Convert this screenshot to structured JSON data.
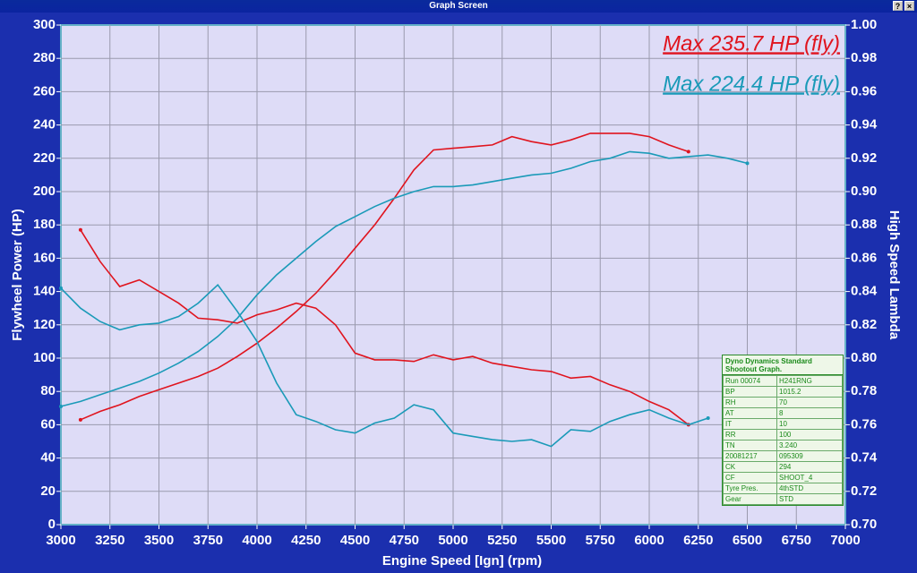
{
  "window": {
    "title": "Graph Screen"
  },
  "chart_data": {
    "type": "line",
    "xlabel": "Engine Speed [Ign] (rpm)",
    "ylabel": "Flywheel Power (HP)",
    "y2label": "High Speed Lambda",
    "annotations": [
      {
        "text": "Max 235.7 HP (fly)",
        "color": "#e0141e"
      },
      {
        "text": "Max 224.4 HP (fly)",
        "color": "#1a9ab8"
      }
    ],
    "grid": true,
    "xlim": [
      3000,
      7000
    ],
    "xticks": [
      3000,
      3250,
      3500,
      3750,
      4000,
      4250,
      4500,
      4750,
      5000,
      5250,
      5500,
      5750,
      6000,
      6250,
      6500,
      6750,
      7000
    ],
    "ylim": [
      0,
      300
    ],
    "yticks": [
      0,
      20,
      40,
      60,
      80,
      100,
      120,
      140,
      160,
      180,
      200,
      220,
      240,
      260,
      280,
      300
    ],
    "y2lim": [
      0.7,
      1.0
    ],
    "y2ticks": [
      {
        "value": 0.7,
        "label": "0.70"
      },
      0.72,
      0.74,
      0.76,
      0.78,
      {
        "value": 0.8,
        "label": "0.80"
      },
      0.82,
      0.84,
      0.86,
      0.88,
      {
        "value": 0.9,
        "label": "0.90"
      },
      0.92,
      0.94,
      0.96,
      0.98,
      {
        "value": 1.0,
        "label": "1.00"
      }
    ],
    "x": [
      3000,
      3100,
      3200,
      3300,
      3400,
      3500,
      3600,
      3700,
      3800,
      3900,
      4000,
      4100,
      4200,
      4300,
      4400,
      4500,
      4600,
      4700,
      4800,
      4900,
      5000,
      5100,
      5200,
      5300,
      5400,
      5500,
      5600,
      5700,
      5800,
      5900,
      6000,
      6100,
      6200,
      6300,
      6400,
      6500
    ],
    "series": [
      {
        "color": "#e0141e",
        "values": [
          null,
          63,
          68,
          72,
          77,
          81,
          85,
          89,
          94,
          101,
          109,
          118,
          128,
          139,
          152,
          166,
          180,
          196,
          213,
          225,
          226,
          227,
          228,
          233,
          230,
          228,
          231,
          235,
          235,
          235,
          233,
          228,
          224,
          null,
          null,
          null
        ]
      },
      {
        "color": "#1a9ab8",
        "values": [
          71,
          74,
          78,
          82,
          86,
          91,
          97,
          104,
          113,
          124,
          138,
          150,
          160,
          170,
          179,
          185,
          191,
          196,
          200,
          203,
          203,
          204,
          206,
          208,
          210,
          211,
          214,
          218,
          220,
          224,
          223,
          220,
          221,
          222,
          220,
          217
        ]
      },
      {
        "color": "#e0141e",
        "axis": "y2",
        "values": [
          null,
          0.877,
          0.858,
          0.843,
          0.847,
          0.84,
          0.833,
          0.824,
          0.823,
          0.821,
          0.826,
          0.829,
          0.833,
          0.83,
          0.82,
          0.803,
          0.799,
          0.799,
          0.798,
          0.802,
          0.799,
          0.801,
          0.797,
          0.795,
          0.793,
          0.792,
          0.788,
          0.789,
          0.784,
          0.78,
          0.774,
          0.769,
          0.76,
          null,
          null,
          null
        ]
      },
      {
        "color": "#1a9ab8",
        "axis": "y2",
        "values": [
          0.842,
          0.83,
          0.822,
          0.817,
          0.82,
          0.821,
          0.825,
          0.833,
          0.844,
          0.828,
          0.81,
          0.785,
          0.766,
          0.762,
          0.757,
          0.755,
          0.761,
          0.764,
          0.772,
          0.769,
          0.755,
          0.753,
          0.751,
          0.75,
          0.751,
          0.747,
          0.757,
          0.756,
          0.762,
          0.766,
          0.769,
          0.764,
          0.76,
          0.764,
          null,
          null
        ]
      }
    ]
  },
  "info_box": {
    "title": "Dyno Dynamics Standard Shootout Graph.",
    "rows": [
      [
        "Run 00074",
        "H241RNG"
      ],
      [
        "BP",
        "1015.2"
      ],
      [
        "RH",
        "70"
      ],
      [
        "AT",
        "8"
      ],
      [
        "IT",
        "10"
      ],
      [
        "RR",
        "100"
      ],
      [
        "TN",
        "3.240"
      ],
      [
        "20081217",
        "095309"
      ],
      [
        "CK",
        "294"
      ],
      [
        "CF",
        "SHOOT_4"
      ],
      [
        "Tyre Pres.",
        "4thSTD"
      ],
      [
        "Gear",
        "STD"
      ]
    ]
  }
}
